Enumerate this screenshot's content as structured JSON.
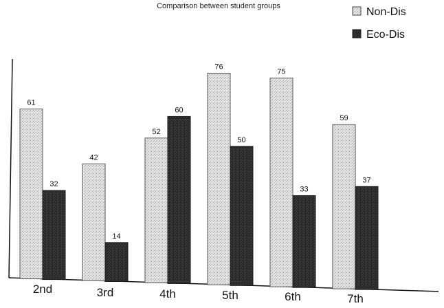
{
  "chart_data": {
    "type": "bar",
    "title": "",
    "subtitle": "Comparison between student groups",
    "xlabel": "",
    "ylabel": "",
    "categories": [
      "2nd",
      "3rd",
      "4th",
      "5th",
      "6th",
      "7th"
    ],
    "series": [
      {
        "name": "Non-Dis",
        "values": [
          61,
          42,
          52,
          76,
          75,
          59
        ],
        "color": "#d6d6d6"
      },
      {
        "name": "Eco-Dis",
        "values": [
          32,
          14,
          60,
          50,
          33,
          37
        ],
        "color": "#2e2e2e"
      }
    ],
    "value_labels": {
      "Non-Dis": [
        "61",
        "42",
        "52",
        "76",
        "75",
        "59"
      ],
      "Eco-Dis": [
        "32",
        "14",
        "60",
        "50",
        "33",
        "37"
      ]
    },
    "ylim": [
      0,
      80
    ],
    "grid": false,
    "legend": "top-right"
  }
}
